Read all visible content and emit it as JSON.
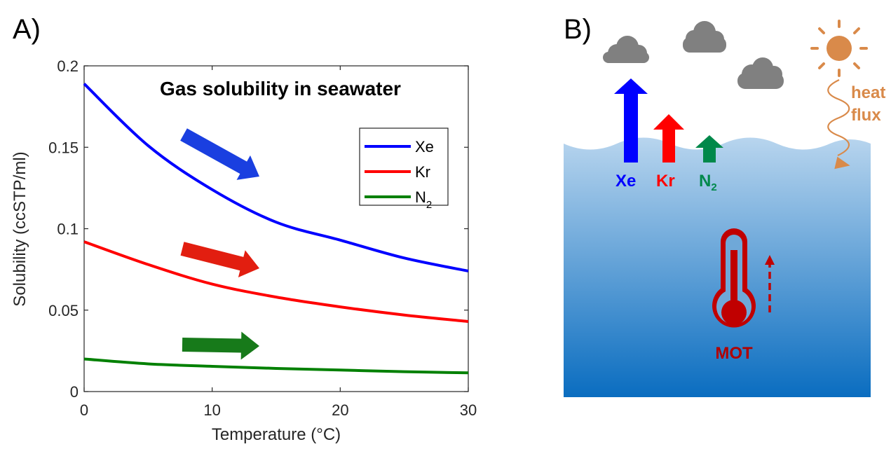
{
  "panel_a": {
    "label": "A)"
  },
  "panel_b": {
    "label": "B)",
    "gas_labels": [
      {
        "name": "Xe",
        "sub": "",
        "color": "#0000ff",
        "icon": "arrow-up-icon"
      },
      {
        "name": "Kr",
        "sub": "",
        "color": "#ff0000",
        "icon": "arrow-up-icon"
      },
      {
        "name": "N",
        "sub": "2",
        "color": "#00884a",
        "icon": "arrow-up-icon"
      }
    ],
    "heat_label_1": "heat",
    "heat_label_2": "flux",
    "heat_color": "#d98a4a",
    "mot_label": "MOT",
    "mot_color": "#b00000",
    "ocean_colors": {
      "top": "#b8d5ee",
      "bottom": "#0a6dc0"
    },
    "cloud_color": "#808080",
    "icons": [
      "cloud-icon",
      "sun-icon",
      "thermometer-icon",
      "wavy-arrow-icon",
      "dashed-arrow-icon"
    ]
  },
  "chart_data": {
    "type": "line",
    "title": "Gas solubility in seawater",
    "xlabel": "Temperature (°C)",
    "ylabel": "Solubility (ccSTP/ml)",
    "xlim": [
      0,
      30
    ],
    "ylim": [
      0,
      0.2
    ],
    "xticks": [
      0,
      10,
      20,
      30
    ],
    "yticks": [
      0,
      0.05,
      0.1,
      0.15,
      0.2
    ],
    "ytick_labels": [
      "0",
      "0.05",
      "0.1",
      "0.15",
      "0.2"
    ],
    "grid": false,
    "legend_position": "right",
    "x": [
      0,
      5,
      10,
      15,
      20,
      25,
      30
    ],
    "series": [
      {
        "name": "Xe",
        "sub": "",
        "color": "#0000ff",
        "values": [
          0.189,
          0.151,
          0.124,
          0.104,
          0.093,
          0.082,
          0.074
        ]
      },
      {
        "name": "Kr",
        "sub": "",
        "color": "#ff0000",
        "values": [
          0.092,
          0.078,
          0.066,
          0.058,
          0.052,
          0.047,
          0.043
        ]
      },
      {
        "name": "N",
        "sub": "2",
        "color": "#008000",
        "values": [
          0.02,
          0.017,
          0.0155,
          0.0142,
          0.0132,
          0.0122,
          0.0115
        ]
      }
    ],
    "trend_arrows": [
      {
        "series": "Xe",
        "color": "#1a3fe0"
      },
      {
        "series": "Kr",
        "color": "#e21e10"
      },
      {
        "series": "N2",
        "color": "#177a1a"
      }
    ]
  }
}
